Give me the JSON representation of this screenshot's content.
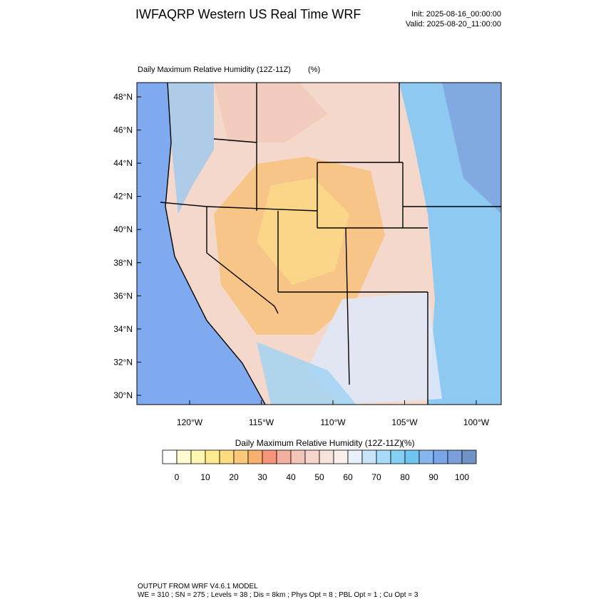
{
  "header": {
    "title": "IWFAQRP Western US Real Time WRF",
    "init": "Init: 2025-08-16_00:00:00",
    "valid": "Valid: 2025-08-20_11:00:00"
  },
  "map": {
    "title": "Daily Maximum Relative Humidity (12Z-11Z)",
    "units": "(%)",
    "lat_ticks": [
      {
        "value": 30,
        "label": "30°N"
      },
      {
        "value": 32,
        "label": "32°N"
      },
      {
        "value": 34,
        "label": "34°N"
      },
      {
        "value": 36,
        "label": "36°N"
      },
      {
        "value": 38,
        "label": "38°N"
      },
      {
        "value": 40,
        "label": "40°N"
      },
      {
        "value": 42,
        "label": "42°N"
      },
      {
        "value": 44,
        "label": "44°N"
      },
      {
        "value": 46,
        "label": "46°N"
      },
      {
        "value": 48,
        "label": "48°N"
      }
    ],
    "lon_ticks": [
      {
        "value": -120,
        "label": "120°W"
      },
      {
        "value": -115,
        "label": "115°W"
      },
      {
        "value": -110,
        "label": "110°W"
      },
      {
        "value": -105,
        "label": "105°W"
      },
      {
        "value": -100,
        "label": "100°W"
      }
    ]
  },
  "colorbar": {
    "title": "Daily Maximum Relative Humidity (12Z-11Z)",
    "units": "(%)",
    "ticks": [
      0,
      10,
      20,
      30,
      40,
      50,
      60,
      70,
      80,
      90,
      100
    ],
    "levels": [
      0,
      5,
      10,
      15,
      20,
      25,
      30,
      35,
      40,
      45,
      50,
      55,
      60,
      65,
      70,
      75,
      80,
      85,
      90,
      95,
      100
    ],
    "colors": [
      "#ffffff",
      "#fffdd0",
      "#fff7b0",
      "#fdeb8e",
      "#fcdc7e",
      "#fbc97a",
      "#f9b06a",
      "#f6957a",
      "#f3b0a0",
      "#f4c4b6",
      "#f6d6cb",
      "#f8e3da",
      "#faefeb",
      "#e8f0fb",
      "#c8e4f8",
      "#a6dcf7",
      "#85cff5",
      "#6fc4f0",
      "#86b6ef",
      "#79a5ea",
      "#7c9fdb",
      "#6f93c4"
    ]
  },
  "footer": {
    "line1": "OUTPUT FROM WRF V4.6.1 MODEL",
    "line2": "WE = 310 ; SN = 275 ; Levels = 38 ; Dis = 8km ; Phys Opt = 8 ; PBL Opt = 1 ; Cu Opt = 3"
  }
}
